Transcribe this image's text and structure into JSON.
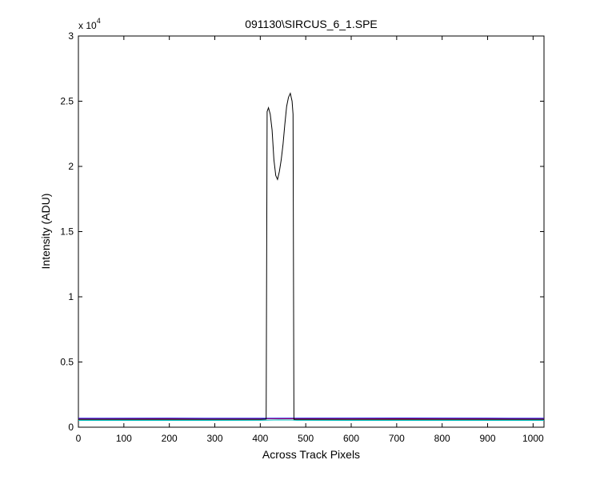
{
  "chart_data": {
    "type": "line",
    "title": "091130\\SIRCUS_6_1.SPE",
    "xlabel": "Across Track Pixels",
    "ylabel": "Intensity (ADU)",
    "xlim": [
      0,
      1024
    ],
    "ylim": [
      0,
      30000
    ],
    "y_multiplier_base": "x 10",
    "y_multiplier_exponent": "4",
    "grid": false,
    "x_ticks": [
      0,
      100,
      200,
      300,
      400,
      500,
      600,
      700,
      800,
      900,
      1000
    ],
    "x_tick_labels": [
      "0",
      "100",
      "200",
      "300",
      "400",
      "500",
      "600",
      "700",
      "800",
      "900",
      "1000"
    ],
    "y_ticks": [
      0,
      5000,
      10000,
      15000,
      20000,
      25000,
      30000
    ],
    "y_tick_labels": [
      "0",
      "0.5",
      "1",
      "1.5",
      "2",
      "2.5",
      "3"
    ],
    "series": [
      {
        "color": "#000000",
        "x": [
          0,
          100,
          200,
          300,
          400,
          413,
          415,
          418,
          422,
          426,
          430,
          434,
          438,
          442,
          446,
          450,
          454,
          458,
          462,
          466,
          470,
          472,
          474,
          480,
          600,
          800,
          1024
        ],
        "y": [
          600,
          600,
          600,
          600,
          600,
          620,
          24200,
          24500,
          24000,
          22800,
          20500,
          19300,
          19000,
          19600,
          20500,
          21700,
          23200,
          24600,
          25300,
          25600,
          25000,
          24000,
          600,
          600,
          600,
          600,
          600
        ]
      },
      {
        "color": "#00bfbf",
        "x": [
          0,
          200,
          400,
          410,
          440,
          470,
          480,
          600,
          800,
          1024
        ],
        "y": [
          520,
          520,
          530,
          540,
          560,
          550,
          530,
          520,
          520,
          520
        ]
      },
      {
        "color": "#0000ff",
        "x": [
          0,
          200,
          400,
          500,
          700,
          900,
          1024
        ],
        "y": [
          680,
          690,
          680,
          690,
          700,
          690,
          680
        ]
      },
      {
        "color": "#ff0000",
        "x": [
          0,
          300,
          600,
          800,
          1024
        ],
        "y": [
          640,
          650,
          640,
          650,
          640
        ]
      }
    ]
  }
}
